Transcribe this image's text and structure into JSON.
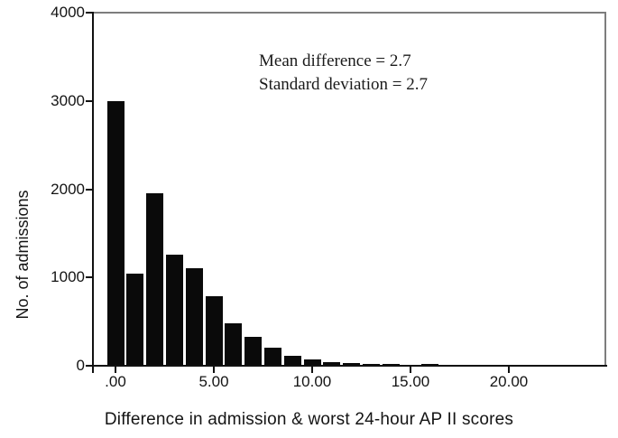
{
  "figure": {
    "background": "#ffffff",
    "bar_color": "#0a0a0a",
    "axis_color": "#111111",
    "frame_color": "#7d7d7d",
    "annotation": {
      "line1": "Mean difference = 2.7",
      "line2": "Standard deviation = 2.7"
    },
    "y_axis_title": "No. of admissions",
    "x_axis_title": "Difference in admission & worst 24-hour AP II scores"
  },
  "chart_data": {
    "type": "bar",
    "title": "",
    "xlabel": "Difference in admission & worst 24-hour AP II scores",
    "ylabel": "No. of admissions",
    "x": [
      0,
      1,
      2,
      3,
      4,
      5,
      6,
      7,
      8,
      9,
      10,
      11,
      12,
      13,
      14,
      15,
      16
    ],
    "values": [
      3000,
      1040,
      1950,
      1260,
      1100,
      790,
      480,
      325,
      205,
      110,
      70,
      40,
      30,
      25,
      25,
      0,
      20
    ],
    "bin_width": 1,
    "x_tick_values": [
      0,
      5,
      10,
      15,
      20
    ],
    "x_tick_labels": [
      ".00",
      "5.00",
      "10.00",
      "15.00",
      "20.00"
    ],
    "y_tick_values": [
      0,
      1000,
      2000,
      3000,
      4000
    ],
    "y_tick_labels": [
      "0",
      "1000",
      "2000",
      "3000",
      "4000"
    ],
    "ylim": [
      0,
      4000
    ],
    "xlim": [
      -1.2,
      24.9
    ],
    "grid": false,
    "legend": "none",
    "annotations": [
      "Mean difference = 2.7",
      "Standard deviation = 2.7"
    ]
  }
}
